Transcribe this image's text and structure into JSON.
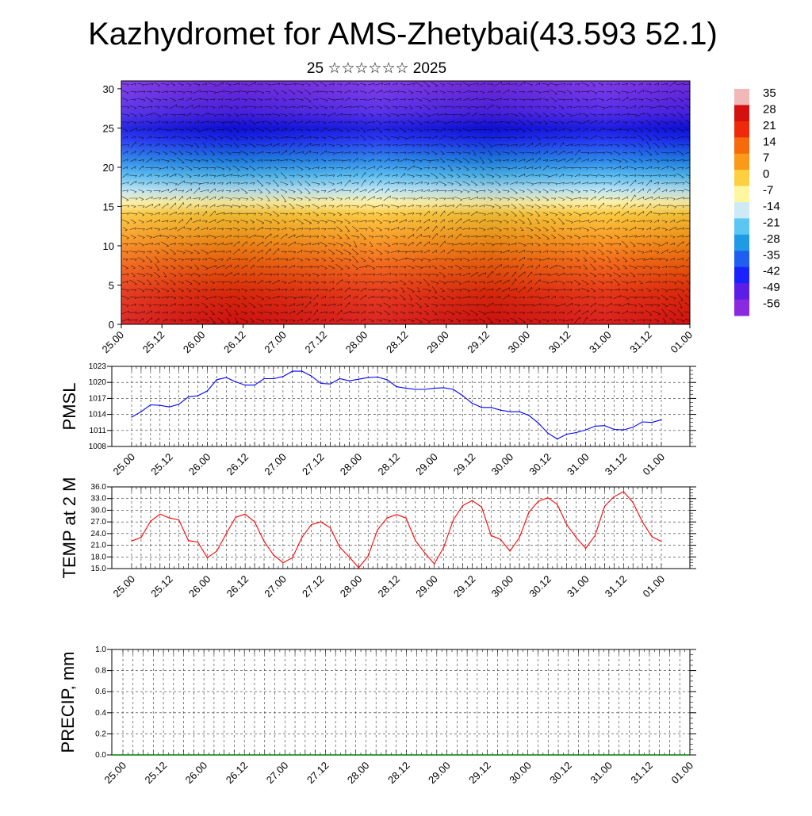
{
  "header": {
    "title": "Kazhydromet for AMS-Zhetybai(43.593 52.1)",
    "subtitle": "25 ☆☆☆☆☆☆ 2025"
  },
  "chart_data": [
    {
      "type": "heatmap",
      "name": "vertical-temperature-wind",
      "title": "",
      "x_tick_labels": [
        "25.00",
        "25.12",
        "26.00",
        "26.12",
        "27.00",
        "27.12",
        "28.00",
        "28.12",
        "29.00",
        "29.12",
        "30.00",
        "30.12",
        "31.00",
        "31.12",
        "01.00"
      ],
      "y_ticks": [
        0,
        5,
        10,
        15,
        20,
        25,
        30
      ],
      "ylim": [
        0,
        31
      ],
      "colorbar_labels": [
        "35",
        "28",
        "21",
        "14",
        "7",
        "0",
        "-7",
        "-14",
        "-21",
        "-28",
        "-35",
        "-42",
        "-49",
        "-56"
      ],
      "colorbar_colors": [
        "#f2b8b8",
        "#d41010",
        "#ee2a0a",
        "#f66a0c",
        "#fa9a18",
        "#fcd040",
        "#fff6a0",
        "#cdeaf5",
        "#5cc6f2",
        "#1f9be6",
        "#1f5ef0",
        "#1a22ff",
        "#5a1ee6",
        "#8a2ae0"
      ],
      "profile": [
        {
          "level": 0,
          "color": "#d81212"
        },
        {
          "level": 4,
          "color": "#e32a0c"
        },
        {
          "level": 8,
          "color": "#f2620e"
        },
        {
          "level": 11,
          "color": "#f8961a"
        },
        {
          "level": 14,
          "color": "#fcc636"
        },
        {
          "level": 15.5,
          "color": "#fff0a0"
        },
        {
          "level": 17,
          "color": "#bfe6f4"
        },
        {
          "level": 19,
          "color": "#4fb8f0"
        },
        {
          "level": 21,
          "color": "#1f7ee8"
        },
        {
          "level": 23.5,
          "color": "#1a2cf2"
        },
        {
          "level": 25,
          "color": "#1010e0"
        },
        {
          "level": 27,
          "color": "#4a22e8"
        },
        {
          "level": 31,
          "color": "#7a2ee6"
        }
      ]
    },
    {
      "type": "line",
      "name": "pmsl",
      "ylabel": "PMSL",
      "ylim": [
        1008,
        1023
      ],
      "y_ticks": [
        1008,
        1011,
        1014,
        1017,
        1020,
        1023
      ],
      "y_tick_labels": [
        "1008",
        "1011",
        "1014",
        "1017",
        "1020",
        "1023"
      ],
      "x_tick_labels": [
        "25.00",
        "25.12",
        "26.00",
        "26.12",
        "27.00",
        "27.12",
        "28.00",
        "28.12",
        "29.00",
        "29.12",
        "30.00",
        "30.12",
        "31.00",
        "31.12",
        "01.00"
      ],
      "x_step_hours": 3,
      "color": "#0000ff",
      "values": [
        1013.5,
        1014.5,
        1015.8,
        1015.7,
        1015.4,
        1015.9,
        1017.3,
        1017.5,
        1018.4,
        1020.5,
        1020.9,
        1020.1,
        1019.5,
        1019.5,
        1020.7,
        1020.7,
        1021.1,
        1022.1,
        1022.1,
        1021.2,
        1019.8,
        1019.7,
        1020.7,
        1020.3,
        1020.6,
        1020.9,
        1021.0,
        1020.5,
        1019.2,
        1018.9,
        1018.7,
        1018.7,
        1018.9,
        1019.0,
        1018.7,
        1017.5,
        1016.1,
        1015.3,
        1015.3,
        1014.8,
        1014.5,
        1014.5,
        1013.8,
        1012.4,
        1010.5,
        1009.4,
        1010.3,
        1010.6,
        1011.1,
        1011.8,
        1011.9,
        1011.2,
        1011.1,
        1011.6,
        1012.6,
        1012.5,
        1013.0
      ]
    },
    {
      "type": "line",
      "name": "temp-2m",
      "ylabel": "TEMP at 2 M",
      "ylim": [
        15,
        36
      ],
      "y_ticks": [
        15,
        18,
        21,
        24,
        27,
        30,
        33,
        36
      ],
      "y_tick_labels": [
        "15.0",
        "18.0",
        "21.0",
        "24.0",
        "27.0",
        "30.0",
        "33.0",
        "36.0"
      ],
      "x_tick_labels": [
        "25.00",
        "25.12",
        "26.00",
        "26.12",
        "27.00",
        "27.12",
        "28.00",
        "28.12",
        "29.00",
        "29.12",
        "30.00",
        "30.12",
        "31.00",
        "31.12",
        "01.00"
      ],
      "x_step_hours": 3,
      "color": "#ff0000",
      "values": [
        22.1,
        23.0,
        27.2,
        29.0,
        28.0,
        27.5,
        22.2,
        21.8,
        17.8,
        19.5,
        24.0,
        28.2,
        29.0,
        27.0,
        22.0,
        18.5,
        16.5,
        17.8,
        23.0,
        26.3,
        27.0,
        25.5,
        20.5,
        18.0,
        15.2,
        18.2,
        25.0,
        28.0,
        28.9,
        28.0,
        22.2,
        19.0,
        16.2,
        20.5,
        27.5,
        31.2,
        32.5,
        30.8,
        23.5,
        22.5,
        19.5,
        23.0,
        29.5,
        32.3,
        33.2,
        31.5,
        26.3,
        23.0,
        20.2,
        23.5,
        31.0,
        33.5,
        34.8,
        32.0,
        27.0,
        23.2,
        22.0
      ]
    },
    {
      "type": "bar",
      "name": "precip",
      "ylabel": "PRECIP, mm",
      "ylim": [
        0,
        1
      ],
      "y_ticks": [
        0,
        0.2,
        0.4,
        0.6,
        0.8,
        1.0
      ],
      "y_tick_labels": [
        "0.0",
        "0.2",
        "0.4",
        "0.6",
        "0.8",
        "1.0"
      ],
      "x_tick_labels": [
        "25.00",
        "25.12",
        "26.00",
        "26.12",
        "27.00",
        "27.12",
        "28.00",
        "28.12",
        "29.00",
        "29.12",
        "30.00",
        "30.12",
        "31.00",
        "31.12",
        "01.00"
      ],
      "color": "#008000",
      "values": []
    }
  ]
}
